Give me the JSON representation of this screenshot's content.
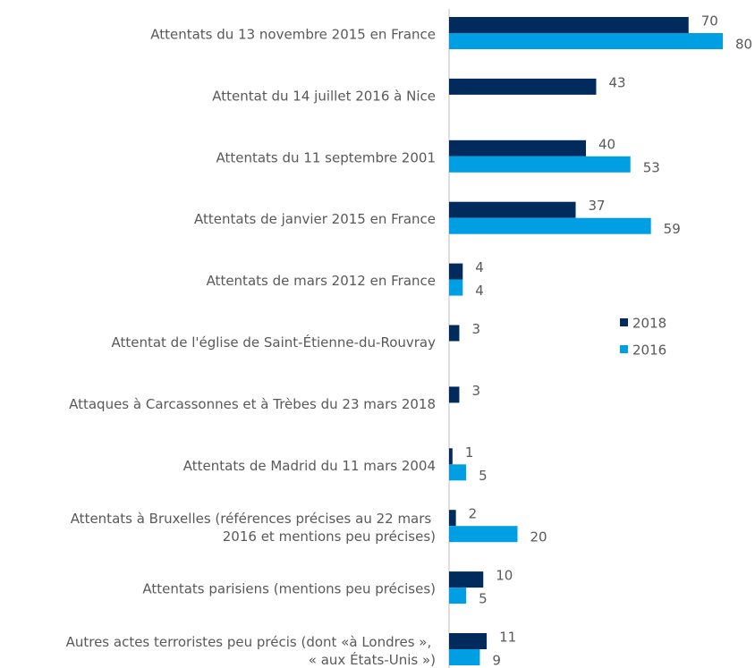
{
  "chart_data": {
    "type": "bar",
    "orientation": "horizontal",
    "categories": [
      "Attentats du 13 novembre 2015 en France",
      "Attentat du 14 juillet 2016 à Nice",
      "Attentats du 11 septembre 2001",
      "Attentats de janvier 2015 en France",
      "Attentats de mars 2012 en France",
      "Attentat de l'église de Saint-Étienne-du-Rouvray",
      "Attaques à Carcassonnes et à Trèbes du 23 mars 2018",
      "Attentats de Madrid du 11 mars 2004",
      "Attentats à Bruxelles (références précises au 22 mars\n2016 et mentions peu précises)",
      "Attentats parisiens (mentions peu précises)",
      "Autres actes terroristes peu précis (dont «à Londres »,\n« aux États-Unis »)"
    ],
    "series": [
      {
        "name": "2018",
        "color": "#002b5c",
        "values": [
          70,
          43,
          40,
          37,
          4,
          3,
          3,
          1,
          2,
          10,
          11
        ]
      },
      {
        "name": "2016",
        "color": "#009fe3",
        "values": [
          80,
          null,
          53,
          59,
          4,
          null,
          null,
          5,
          20,
          5,
          9
        ]
      }
    ],
    "xlim": [
      0,
      80
    ]
  }
}
